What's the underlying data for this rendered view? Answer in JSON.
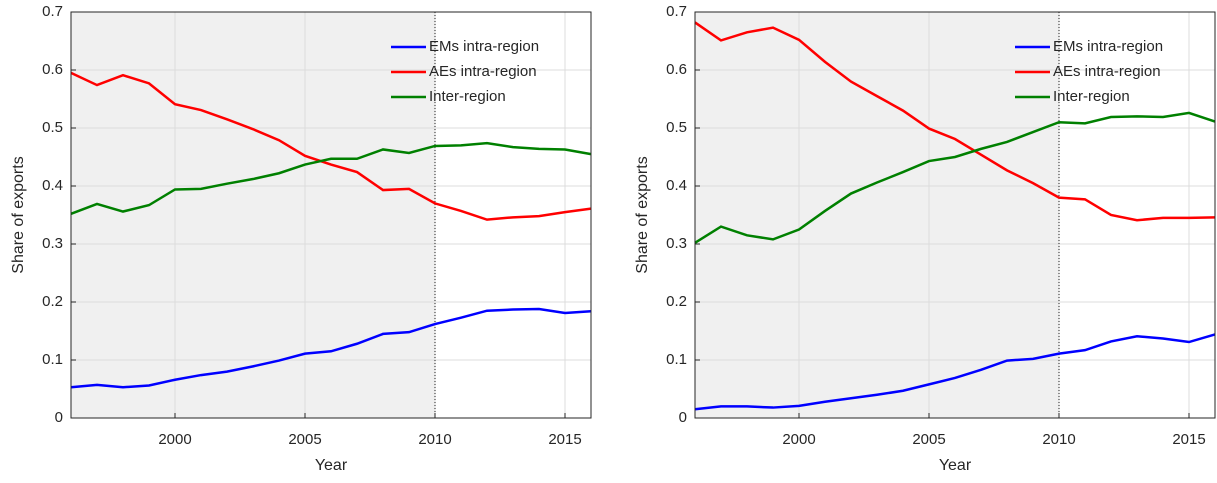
{
  "chart_data": [
    {
      "type": "line",
      "xlabel": "Year",
      "ylabel": "Share of exports",
      "x": [
        1996,
        1997,
        1998,
        1999,
        2000,
        2001,
        2002,
        2003,
        2004,
        2005,
        2006,
        2007,
        2008,
        2009,
        2010,
        2011,
        2012,
        2013,
        2014,
        2015,
        2016
      ],
      "series": [
        {
          "name": "EMs intra-region",
          "color": "#0000ff",
          "values": [
            0.053,
            0.057,
            0.053,
            0.056,
            0.066,
            0.074,
            0.08,
            0.089,
            0.099,
            0.111,
            0.115,
            0.128,
            0.145,
            0.148,
            0.162,
            0.173,
            0.185,
            0.187,
            0.188,
            0.181,
            0.184
          ]
        },
        {
          "name": "AEs intra-region",
          "color": "#ff0000",
          "values": [
            0.595,
            0.574,
            0.591,
            0.577,
            0.541,
            0.531,
            0.515,
            0.498,
            0.479,
            0.452,
            0.437,
            0.424,
            0.393,
            0.395,
            0.37,
            0.357,
            0.342,
            0.346,
            0.348,
            0.355,
            0.361
          ]
        },
        {
          "name": "Inter-region",
          "color": "#008000",
          "values": [
            0.352,
            0.369,
            0.356,
            0.367,
            0.394,
            0.395,
            0.404,
            0.412,
            0.422,
            0.437,
            0.447,
            0.447,
            0.463,
            0.457,
            0.469,
            0.47,
            0.474,
            0.467,
            0.464,
            0.463,
            0.455
          ]
        }
      ],
      "xlim": [
        1996,
        2016
      ],
      "xticks": [
        2000,
        2005,
        2010,
        2015
      ],
      "ylim": [
        0,
        0.7
      ],
      "yticks": [
        0,
        0.1,
        0.2,
        0.3,
        0.4,
        0.5,
        0.6,
        0.7
      ],
      "grid": true,
      "legend": "upper right",
      "shade_xlim": [
        1996,
        2010
      ],
      "shade_color": "#f0f0f0",
      "vline_x": 2010
    },
    {
      "type": "line",
      "xlabel": "Year",
      "ylabel": "Share of exports",
      "x": [
        1996,
        1997,
        1998,
        1999,
        2000,
        2001,
        2002,
        2003,
        2004,
        2005,
        2006,
        2007,
        2008,
        2009,
        2010,
        2011,
        2012,
        2013,
        2014,
        2015,
        2016
      ],
      "series": [
        {
          "name": "EMs intra-region",
          "color": "#0000ff",
          "values": [
            0.015,
            0.02,
            0.02,
            0.018,
            0.021,
            0.028,
            0.034,
            0.04,
            0.047,
            0.058,
            0.069,
            0.083,
            0.099,
            0.102,
            0.111,
            0.117,
            0.132,
            0.141,
            0.137,
            0.131,
            0.144
          ]
        },
        {
          "name": "AEs intra-region",
          "color": "#ff0000",
          "values": [
            0.682,
            0.651,
            0.665,
            0.673,
            0.652,
            0.614,
            0.58,
            0.555,
            0.53,
            0.499,
            0.481,
            0.454,
            0.427,
            0.405,
            0.38,
            0.377,
            0.35,
            0.341,
            0.345,
            0.345,
            0.346
          ]
        },
        {
          "name": "Inter-region",
          "color": "#008000",
          "values": [
            0.302,
            0.33,
            0.315,
            0.308,
            0.325,
            0.357,
            0.387,
            0.406,
            0.424,
            0.443,
            0.45,
            0.464,
            0.476,
            0.493,
            0.51,
            0.508,
            0.519,
            0.52,
            0.519,
            0.526,
            0.511
          ]
        }
      ],
      "xlim": [
        1996,
        2016
      ],
      "xticks": [
        2000,
        2005,
        2010,
        2015
      ],
      "ylim": [
        0,
        0.7
      ],
      "yticks": [
        0,
        0.1,
        0.2,
        0.3,
        0.4,
        0.5,
        0.6,
        0.7
      ],
      "grid": true,
      "legend": "upper right",
      "shade_xlim": [
        1996,
        2010
      ],
      "shade_color": "#f0f0f0",
      "vline_x": 2010
    }
  ]
}
